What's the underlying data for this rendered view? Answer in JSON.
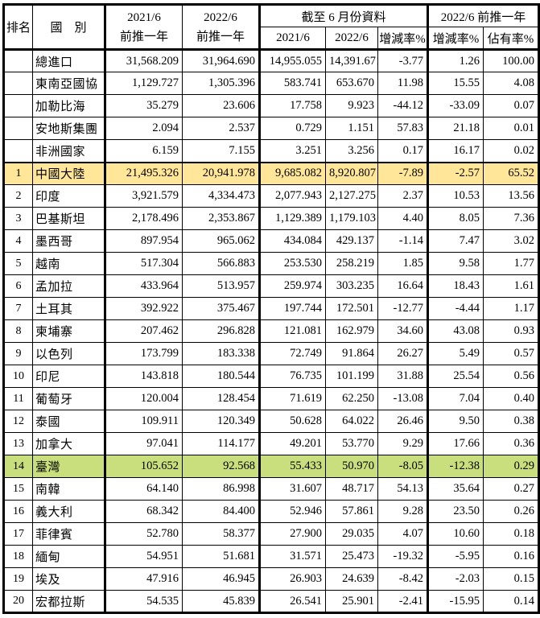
{
  "colors": {
    "highlight_china_row": "#FFE699",
    "highlight_taiwan_row": "#C9DF7E",
    "border": "#000000",
    "text": "#000000"
  },
  "table": {
    "header": {
      "rank": "排名",
      "country": "國　別",
      "prev_2021": {
        "line1": "2021/6",
        "line2": "前推一年"
      },
      "prev_2022": {
        "line1": "2022/6",
        "line2": "前推一年"
      },
      "group_june": "截至 6 月份資料",
      "group_prev": "2022/6 前推一年",
      "sub": {
        "y2021": "2021/6",
        "y2022": "2022/6",
        "change_june": "增減率%",
        "change_prev": "增減率%",
        "share": "佔有率%"
      }
    },
    "rows": [
      {
        "rank": "",
        "country": "總進口",
        "prev2021": "31,568.209",
        "prev2022": "31,964.690",
        "june2021": "14,955.055",
        "june2022": "14,391.671",
        "change_june": "-3.77",
        "change_prev": "1.26",
        "share": "100.00",
        "highlight": ""
      },
      {
        "rank": "",
        "country": "東南亞國協",
        "prev2021": "1,129.727",
        "prev2022": "1,305.396",
        "june2021": "583.741",
        "june2022": "653.670",
        "change_june": "11.98",
        "change_prev": "15.55",
        "share": "4.08",
        "highlight": ""
      },
      {
        "rank": "",
        "country": "加勒比海",
        "prev2021": "35.279",
        "prev2022": "23.606",
        "june2021": "17.758",
        "june2022": "9.923",
        "change_june": "-44.12",
        "change_prev": "-33.09",
        "share": "0.07",
        "highlight": ""
      },
      {
        "rank": "",
        "country": "安地斯集團",
        "prev2021": "2.094",
        "prev2022": "2.537",
        "june2021": "0.729",
        "june2022": "1.151",
        "change_june": "57.83",
        "change_prev": "21.18",
        "share": "0.01",
        "highlight": ""
      },
      {
        "rank": "",
        "country": "非洲國家",
        "prev2021": "6.159",
        "prev2022": "7.155",
        "june2021": "3.251",
        "june2022": "3.256",
        "change_june": "0.17",
        "change_prev": "16.17",
        "share": "0.02",
        "highlight": ""
      },
      {
        "rank": "1",
        "country": "中國大陸",
        "prev2021": "21,495.326",
        "prev2022": "20,941.978",
        "june2021": "9,685.082",
        "june2022": "8,920.807",
        "change_june": "-7.89",
        "change_prev": "-2.57",
        "share": "65.52",
        "highlight": "yellow"
      },
      {
        "rank": "2",
        "country": "印度",
        "prev2021": "3,921.579",
        "prev2022": "4,334.473",
        "june2021": "2,077.943",
        "june2022": "2,127.275",
        "change_june": "2.37",
        "change_prev": "10.53",
        "share": "13.56",
        "highlight": ""
      },
      {
        "rank": "3",
        "country": "巴基斯坦",
        "prev2021": "2,178.496",
        "prev2022": "2,353.867",
        "june2021": "1,129.389",
        "june2022": "1,179.103",
        "change_june": "4.40",
        "change_prev": "8.05",
        "share": "7.36",
        "highlight": ""
      },
      {
        "rank": "4",
        "country": "墨西哥",
        "prev2021": "897.954",
        "prev2022": "965.062",
        "june2021": "434.084",
        "june2022": "429.137",
        "change_june": "-1.14",
        "change_prev": "7.47",
        "share": "3.02",
        "highlight": ""
      },
      {
        "rank": "5",
        "country": "越南",
        "prev2021": "517.304",
        "prev2022": "566.883",
        "june2021": "253.530",
        "june2022": "258.219",
        "change_june": "1.85",
        "change_prev": "9.58",
        "share": "1.77",
        "highlight": ""
      },
      {
        "rank": "6",
        "country": "孟加拉",
        "prev2021": "433.964",
        "prev2022": "513.957",
        "june2021": "259.974",
        "june2022": "303.235",
        "change_june": "16.64",
        "change_prev": "18.43",
        "share": "1.61",
        "highlight": ""
      },
      {
        "rank": "7",
        "country": "土耳其",
        "prev2021": "392.922",
        "prev2022": "375.467",
        "june2021": "197.744",
        "june2022": "172.501",
        "change_june": "-12.77",
        "change_prev": "-4.44",
        "share": "1.17",
        "highlight": ""
      },
      {
        "rank": "8",
        "country": "柬埔寨",
        "prev2021": "207.462",
        "prev2022": "296.828",
        "june2021": "121.081",
        "june2022": "162.979",
        "change_june": "34.60",
        "change_prev": "43.08",
        "share": "0.93",
        "highlight": ""
      },
      {
        "rank": "9",
        "country": "以色列",
        "prev2021": "173.799",
        "prev2022": "183.338",
        "june2021": "72.749",
        "june2022": "91.864",
        "change_june": "26.27",
        "change_prev": "5.49",
        "share": "0.57",
        "highlight": ""
      },
      {
        "rank": "10",
        "country": "印尼",
        "prev2021": "143.818",
        "prev2022": "180.544",
        "june2021": "76.735",
        "june2022": "101.199",
        "change_june": "31.88",
        "change_prev": "25.54",
        "share": "0.56",
        "highlight": ""
      },
      {
        "rank": "11",
        "country": "葡萄牙",
        "prev2021": "120.004",
        "prev2022": "128.454",
        "june2021": "71.619",
        "june2022": "62.250",
        "change_june": "-13.08",
        "change_prev": "7.04",
        "share": "0.40",
        "highlight": ""
      },
      {
        "rank": "12",
        "country": "泰國",
        "prev2021": "109.911",
        "prev2022": "120.349",
        "june2021": "50.628",
        "june2022": "64.022",
        "change_june": "26.46",
        "change_prev": "9.50",
        "share": "0.38",
        "highlight": ""
      },
      {
        "rank": "13",
        "country": "加拿大",
        "prev2021": "97.041",
        "prev2022": "114.177",
        "june2021": "49.201",
        "june2022": "53.770",
        "change_june": "9.29",
        "change_prev": "17.66",
        "share": "0.36",
        "highlight": ""
      },
      {
        "rank": "14",
        "country": "臺灣",
        "prev2021": "105.652",
        "prev2022": "92.568",
        "june2021": "55.433",
        "june2022": "50.970",
        "change_june": "-8.05",
        "change_prev": "-12.38",
        "share": "0.29",
        "highlight": "green"
      },
      {
        "rank": "15",
        "country": "南韓",
        "prev2021": "64.140",
        "prev2022": "86.998",
        "june2021": "31.607",
        "june2022": "48.717",
        "change_june": "54.13",
        "change_prev": "35.64",
        "share": "0.27",
        "highlight": ""
      },
      {
        "rank": "16",
        "country": "義大利",
        "prev2021": "68.342",
        "prev2022": "84.400",
        "june2021": "52.946",
        "june2022": "57.861",
        "change_june": "9.28",
        "change_prev": "23.50",
        "share": "0.26",
        "highlight": ""
      },
      {
        "rank": "17",
        "country": "菲律賓",
        "prev2021": "52.780",
        "prev2022": "58.377",
        "june2021": "27.900",
        "june2022": "29.035",
        "change_june": "4.07",
        "change_prev": "10.60",
        "share": "0.18",
        "highlight": ""
      },
      {
        "rank": "18",
        "country": "緬甸",
        "prev2021": "54.951",
        "prev2022": "51.681",
        "june2021": "31.571",
        "june2022": "25.473",
        "change_june": "-19.32",
        "change_prev": "-5.95",
        "share": "0.16",
        "highlight": ""
      },
      {
        "rank": "19",
        "country": "埃及",
        "prev2021": "47.916",
        "prev2022": "46.945",
        "june2021": "26.903",
        "june2022": "24.639",
        "change_june": "-8.42",
        "change_prev": "-2.03",
        "share": "0.15",
        "highlight": ""
      },
      {
        "rank": "20",
        "country": "宏都拉斯",
        "prev2021": "54.535",
        "prev2022": "45.839",
        "june2021": "26.541",
        "june2022": "25.901",
        "change_june": "-2.41",
        "change_prev": "-15.95",
        "share": "0.14",
        "highlight": ""
      }
    ]
  }
}
